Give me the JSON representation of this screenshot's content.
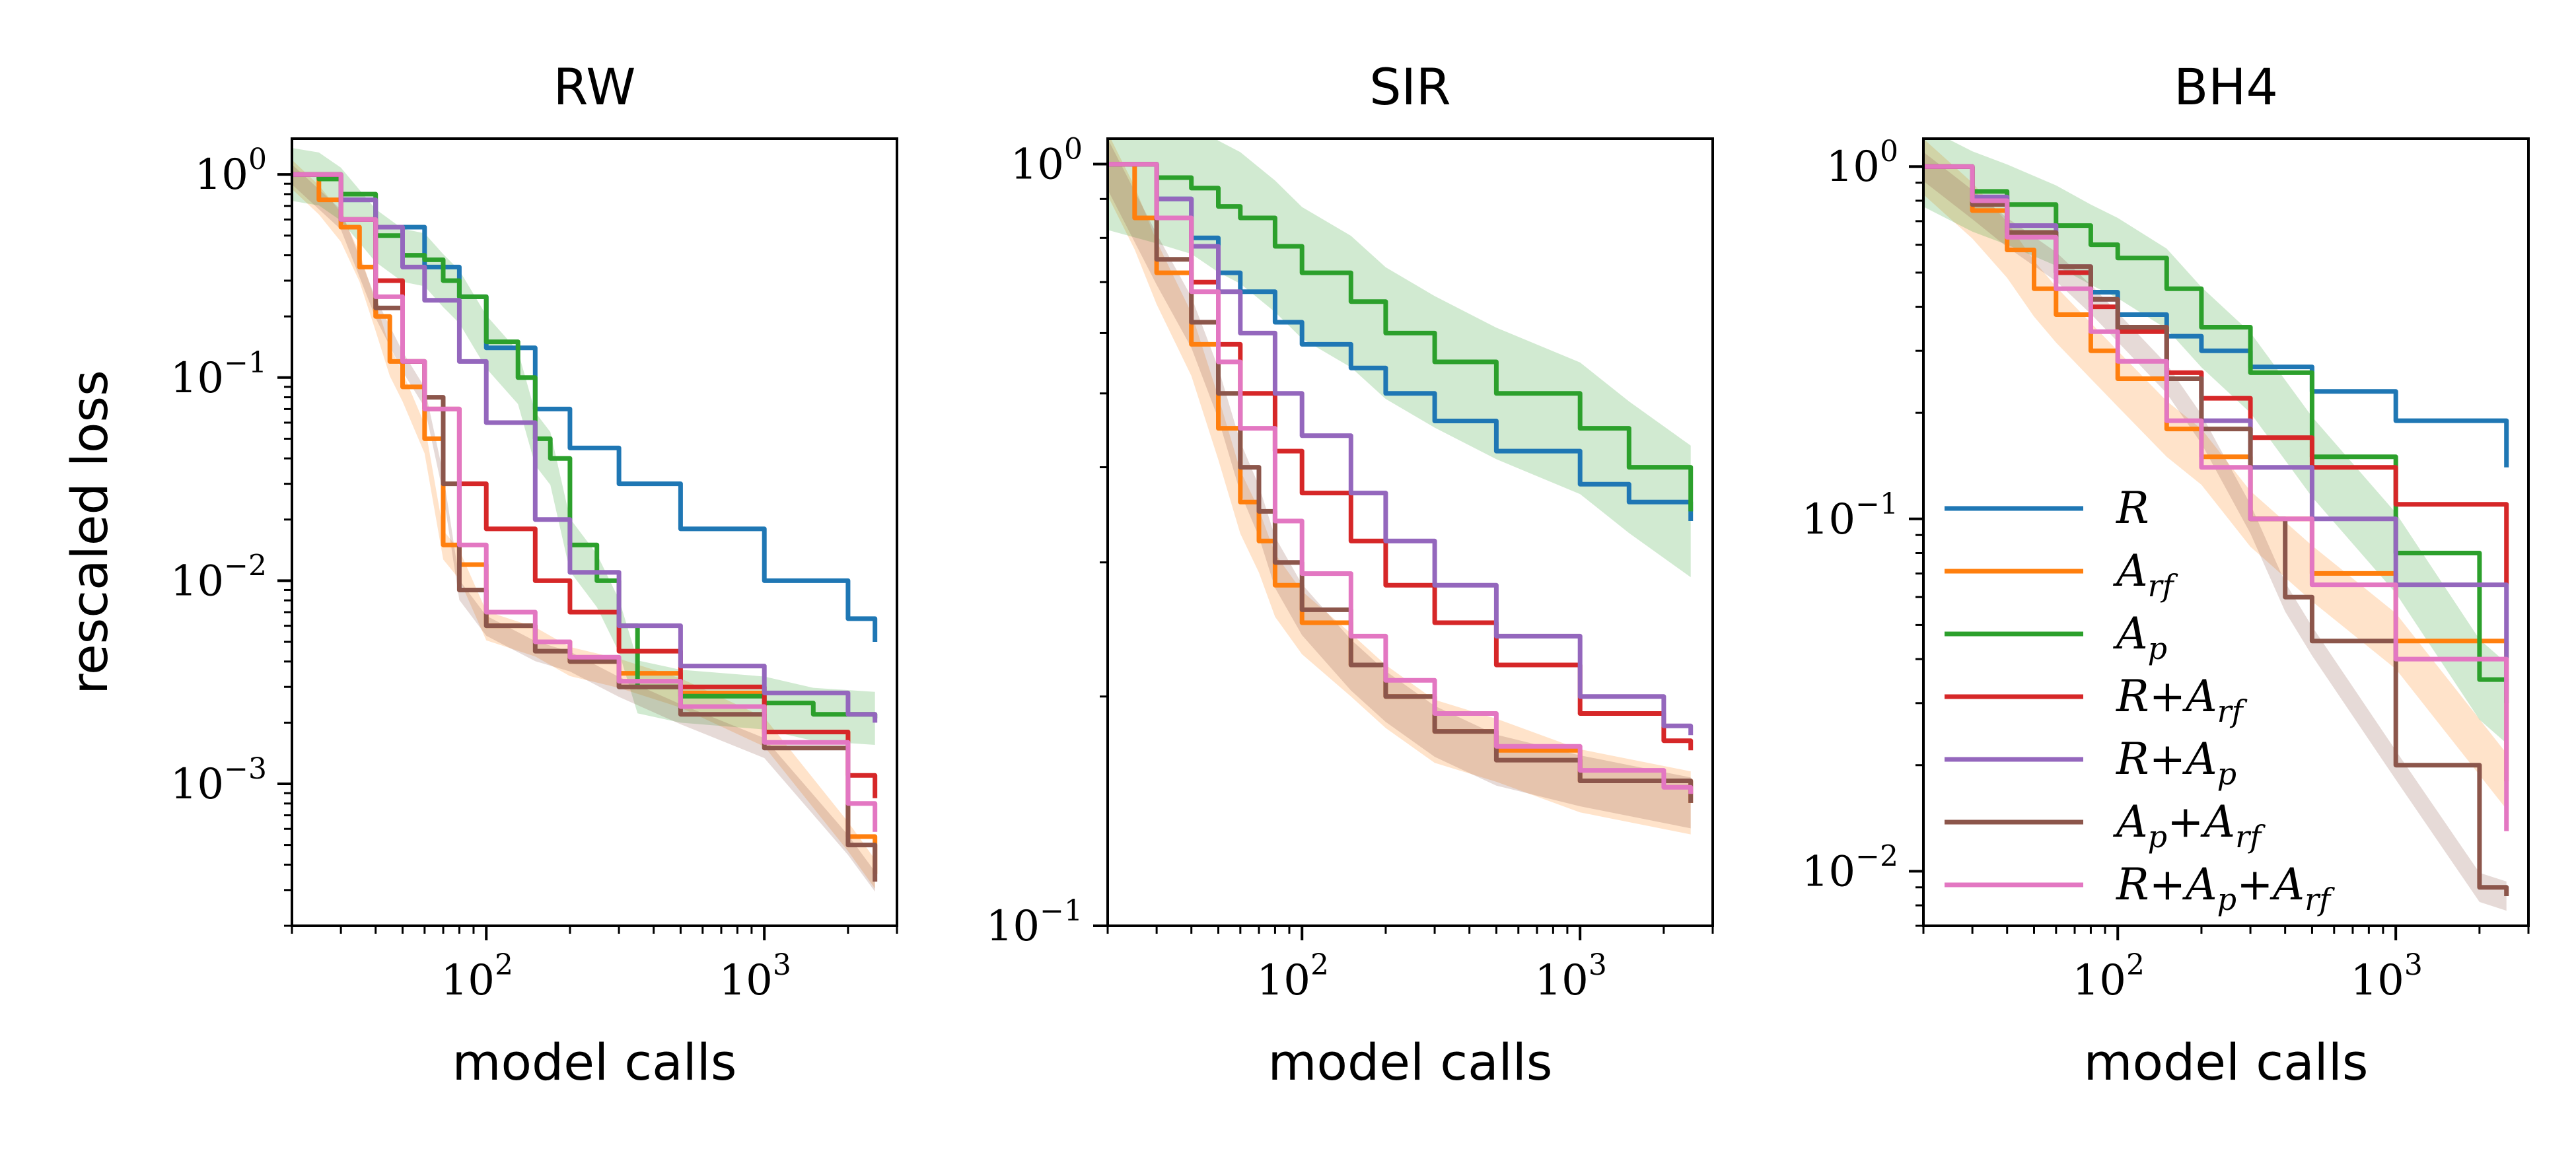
{
  "chart_data": [
    {
      "type": "line",
      "title": "RW",
      "xlabel": "model calls",
      "ylabel": "rescaled loss",
      "xscale": "log",
      "yscale": "log",
      "xlim": [
        20,
        3000
      ],
      "ylim": [
        0.0002,
        1.5
      ],
      "xticks": [
        {
          "value": 100,
          "base": "10",
          "exp": "2"
        },
        {
          "value": 1000,
          "base": "10",
          "exp": "3"
        }
      ],
      "yticks": [
        {
          "value": 1,
          "base": "10",
          "exp": "0"
        },
        {
          "value": 0.1,
          "base": "10",
          "exp": "−1"
        },
        {
          "value": 0.01,
          "base": "10",
          "exp": "−2"
        },
        {
          "value": 0.001,
          "base": "10",
          "exp": "−3"
        }
      ],
      "series": [
        {
          "id": "R",
          "color": "#1f77b4",
          "x": [
            20,
            30,
            40,
            60,
            80,
            100,
            150,
            200,
            300,
            500,
            1000,
            2000,
            2500
          ],
          "y": [
            1.0,
            0.75,
            0.55,
            0.35,
            0.25,
            0.14,
            0.07,
            0.045,
            0.03,
            0.018,
            0.01,
            0.0065,
            0.005
          ]
        },
        {
          "id": "Arf",
          "color": "#ff7f0e",
          "band": 0.18,
          "x": [
            20,
            25,
            30,
            35,
            40,
            45,
            50,
            60,
            70,
            80,
            100,
            150,
            200,
            300,
            500,
            1000,
            2000,
            2500
          ],
          "y": [
            1.0,
            0.75,
            0.55,
            0.35,
            0.2,
            0.12,
            0.09,
            0.05,
            0.015,
            0.012,
            0.006,
            0.005,
            0.004,
            0.0035,
            0.0028,
            0.0018,
            0.00055,
            0.00036
          ]
        },
        {
          "id": "Ap",
          "color": "#2ca02c",
          "band": 0.35,
          "x": [
            20,
            25,
            30,
            40,
            50,
            60,
            70,
            80,
            100,
            130,
            150,
            170,
            200,
            250,
            300,
            350,
            500,
            1000,
            1500,
            2500
          ],
          "y": [
            1.0,
            0.95,
            0.8,
            0.5,
            0.4,
            0.38,
            0.3,
            0.25,
            0.15,
            0.1,
            0.05,
            0.04,
            0.015,
            0.01,
            0.006,
            0.003,
            0.0027,
            0.0025,
            0.0022,
            0.0021
          ]
        },
        {
          "id": "RArf",
          "color": "#d62728",
          "x": [
            20,
            30,
            40,
            50,
            60,
            80,
            100,
            150,
            200,
            300,
            500,
            1000,
            2000,
            2500
          ],
          "y": [
            1.0,
            0.6,
            0.3,
            0.12,
            0.07,
            0.03,
            0.018,
            0.01,
            0.007,
            0.0045,
            0.003,
            0.0018,
            0.0011,
            0.00085
          ]
        },
        {
          "id": "RAp",
          "color": "#9467bd",
          "x": [
            20,
            30,
            40,
            50,
            60,
            80,
            100,
            150,
            200,
            300,
            500,
            1000,
            2000,
            2500
          ],
          "y": [
            1.0,
            0.75,
            0.55,
            0.35,
            0.24,
            0.12,
            0.06,
            0.02,
            0.011,
            0.006,
            0.0038,
            0.0028,
            0.0022,
            0.002
          ]
        },
        {
          "id": "ApArf",
          "color": "#8c564b",
          "band": 0.12,
          "x": [
            20,
            30,
            40,
            50,
            60,
            70,
            80,
            100,
            150,
            200,
            300,
            500,
            1000,
            2000,
            2500
          ],
          "y": [
            1.0,
            0.6,
            0.22,
            0.12,
            0.08,
            0.03,
            0.009,
            0.006,
            0.0045,
            0.004,
            0.003,
            0.0022,
            0.0015,
            0.0005,
            0.00033
          ]
        },
        {
          "id": "RApArf",
          "color": "#e377c2",
          "x": [
            20,
            30,
            40,
            50,
            60,
            80,
            100,
            150,
            200,
            300,
            500,
            1000,
            2000,
            2500
          ],
          "y": [
            1.0,
            0.6,
            0.25,
            0.12,
            0.07,
            0.015,
            0.007,
            0.005,
            0.0042,
            0.0032,
            0.0024,
            0.0016,
            0.0008,
            0.00058
          ]
        }
      ]
    },
    {
      "type": "line",
      "title": "SIR",
      "xlabel": "model calls",
      "xscale": "log",
      "yscale": "log",
      "xlim": [
        20,
        3000
      ],
      "ylim": [
        0.1,
        1.08
      ],
      "xticks": [
        {
          "value": 100,
          "base": "10",
          "exp": "2"
        },
        {
          "value": 1000,
          "base": "10",
          "exp": "3"
        }
      ],
      "yticks": [
        {
          "value": 1,
          "base": "10",
          "exp": "0"
        },
        {
          "value": 0.1,
          "base": "10",
          "exp": "−1"
        }
      ],
      "series": [
        {
          "id": "R",
          "color": "#1f77b4",
          "x": [
            20,
            30,
            40,
            50,
            60,
            80,
            100,
            150,
            200,
            300,
            500,
            1000,
            1500,
            2500
          ],
          "y": [
            1.0,
            0.9,
            0.8,
            0.72,
            0.68,
            0.62,
            0.58,
            0.54,
            0.5,
            0.46,
            0.42,
            0.38,
            0.36,
            0.34
          ]
        },
        {
          "id": "Arf",
          "color": "#ff7f0e",
          "band": 0.1,
          "x": [
            20,
            25,
            30,
            40,
            50,
            60,
            70,
            80,
            100,
            150,
            200,
            300,
            500,
            1000,
            2500
          ],
          "y": [
            1.0,
            0.85,
            0.72,
            0.58,
            0.45,
            0.36,
            0.32,
            0.28,
            0.25,
            0.22,
            0.2,
            0.18,
            0.17,
            0.155,
            0.145
          ]
        },
        {
          "id": "Ap",
          "color": "#2ca02c",
          "band": 0.22,
          "x": [
            20,
            30,
            40,
            50,
            60,
            80,
            100,
            150,
            200,
            300,
            500,
            1000,
            1500,
            2500
          ],
          "y": [
            1.0,
            0.96,
            0.93,
            0.88,
            0.85,
            0.78,
            0.72,
            0.66,
            0.6,
            0.55,
            0.5,
            0.45,
            0.4,
            0.35
          ]
        },
        {
          "id": "RArf",
          "color": "#d62728",
          "x": [
            20,
            30,
            40,
            50,
            60,
            80,
            100,
            150,
            200,
            300,
            500,
            1000,
            2000,
            2500
          ],
          "y": [
            1.0,
            0.85,
            0.7,
            0.58,
            0.5,
            0.42,
            0.37,
            0.32,
            0.28,
            0.25,
            0.22,
            0.19,
            0.175,
            0.17
          ]
        },
        {
          "id": "RAp",
          "color": "#9467bd",
          "x": [
            20,
            30,
            40,
            50,
            60,
            80,
            100,
            150,
            200,
            300,
            500,
            1000,
            2000,
            2500
          ],
          "y": [
            1.0,
            0.9,
            0.78,
            0.68,
            0.6,
            0.5,
            0.44,
            0.37,
            0.32,
            0.28,
            0.24,
            0.2,
            0.183,
            0.178
          ]
        },
        {
          "id": "ApArf",
          "color": "#8c564b",
          "band": 0.08,
          "x": [
            20,
            30,
            40,
            50,
            60,
            70,
            80,
            100,
            150,
            200,
            300,
            500,
            1000,
            2500
          ],
          "y": [
            1.0,
            0.75,
            0.62,
            0.5,
            0.4,
            0.35,
            0.3,
            0.26,
            0.22,
            0.2,
            0.18,
            0.165,
            0.155,
            0.145
          ]
        },
        {
          "id": "RApArf",
          "color": "#e377c2",
          "x": [
            20,
            30,
            40,
            50,
            60,
            80,
            100,
            150,
            200,
            300,
            500,
            1000,
            2000,
            2500
          ],
          "y": [
            1.0,
            0.85,
            0.68,
            0.55,
            0.45,
            0.34,
            0.29,
            0.24,
            0.21,
            0.19,
            0.172,
            0.16,
            0.152,
            0.149
          ]
        }
      ]
    },
    {
      "type": "line",
      "title": "BH4",
      "xlabel": "model calls",
      "xscale": "log",
      "yscale": "log",
      "xlim": [
        20,
        3000
      ],
      "ylim": [
        0.007,
        1.2
      ],
      "xticks": [
        {
          "value": 100,
          "base": "10",
          "exp": "2"
        },
        {
          "value": 1000,
          "base": "10",
          "exp": "3"
        }
      ],
      "yticks": [
        {
          "value": 1,
          "base": "10",
          "exp": "0"
        },
        {
          "value": 0.1,
          "base": "10",
          "exp": "−1"
        },
        {
          "value": 0.01,
          "base": "10",
          "exp": "−2"
        }
      ],
      "legend": {
        "position": "lower-left",
        "order": [
          "R",
          "Arf",
          "Ap",
          "RArf",
          "RAp",
          "ApArf",
          "RApArf"
        ]
      },
      "series": [
        {
          "id": "R",
          "color": "#1f77b4",
          "x": [
            20,
            30,
            40,
            60,
            80,
            100,
            150,
            200,
            300,
            500,
            1000,
            2500
          ],
          "y": [
            1.0,
            0.8,
            0.65,
            0.5,
            0.44,
            0.38,
            0.33,
            0.3,
            0.27,
            0.23,
            0.19,
            0.14
          ]
        },
        {
          "id": "Arf",
          "color": "#ff7f0e",
          "band": 0.2,
          "x": [
            20,
            30,
            40,
            50,
            60,
            80,
            100,
            150,
            200,
            300,
            500,
            1000,
            2500
          ],
          "y": [
            1.0,
            0.75,
            0.58,
            0.45,
            0.38,
            0.3,
            0.25,
            0.18,
            0.15,
            0.1,
            0.07,
            0.045,
            0.018
          ]
        },
        {
          "id": "Ap",
          "color": "#2ca02c",
          "band": 0.3,
          "x": [
            20,
            30,
            40,
            60,
            80,
            100,
            150,
            200,
            300,
            500,
            1000,
            2000,
            2500
          ],
          "y": [
            1.0,
            0.85,
            0.78,
            0.68,
            0.6,
            0.55,
            0.45,
            0.35,
            0.26,
            0.15,
            0.08,
            0.035,
            0.03
          ]
        },
        {
          "id": "RArf",
          "color": "#d62728",
          "x": [
            20,
            30,
            40,
            60,
            80,
            100,
            150,
            200,
            300,
            500,
            1000,
            2500
          ],
          "y": [
            1.0,
            0.8,
            0.65,
            0.5,
            0.4,
            0.34,
            0.26,
            0.22,
            0.17,
            0.14,
            0.11,
            0.065
          ]
        },
        {
          "id": "RAp",
          "color": "#9467bd",
          "x": [
            20,
            30,
            40,
            60,
            80,
            100,
            150,
            200,
            300,
            500,
            1000,
            2500
          ],
          "y": [
            1.0,
            0.82,
            0.68,
            0.52,
            0.42,
            0.35,
            0.25,
            0.19,
            0.14,
            0.1,
            0.065,
            0.032
          ]
        },
        {
          "id": "ApArf",
          "color": "#8c564b",
          "band": 0.1,
          "x": [
            20,
            30,
            40,
            60,
            80,
            100,
            150,
            200,
            300,
            400,
            500,
            1000,
            2000,
            2500
          ],
          "y": [
            1.0,
            0.78,
            0.65,
            0.52,
            0.42,
            0.35,
            0.25,
            0.18,
            0.1,
            0.06,
            0.045,
            0.02,
            0.009,
            0.0085
          ]
        },
        {
          "id": "RApArf",
          "color": "#e377c2",
          "x": [
            20,
            30,
            40,
            60,
            80,
            100,
            150,
            200,
            300,
            500,
            1000,
            2500
          ],
          "y": [
            1.0,
            0.8,
            0.63,
            0.45,
            0.34,
            0.28,
            0.19,
            0.14,
            0.1,
            0.065,
            0.04,
            0.013
          ]
        }
      ]
    }
  ],
  "legend_labels": {
    "R": {
      "main": "R",
      "sub": ""
    },
    "Arf": {
      "main": "A",
      "sub": "rf"
    },
    "Ap": {
      "main": "A",
      "sub": "p"
    },
    "RArf": {
      "main": "R+A",
      "sub": "rf"
    },
    "RAp": {
      "main": "R+A",
      "sub": "p"
    },
    "ApArf": {
      "main": "A",
      "sub": "p",
      "main2": "+A",
      "sub2": "rf"
    },
    "RApArf": {
      "main": "R+A",
      "sub": "p",
      "main2": "+A",
      "sub2": "rf"
    }
  }
}
